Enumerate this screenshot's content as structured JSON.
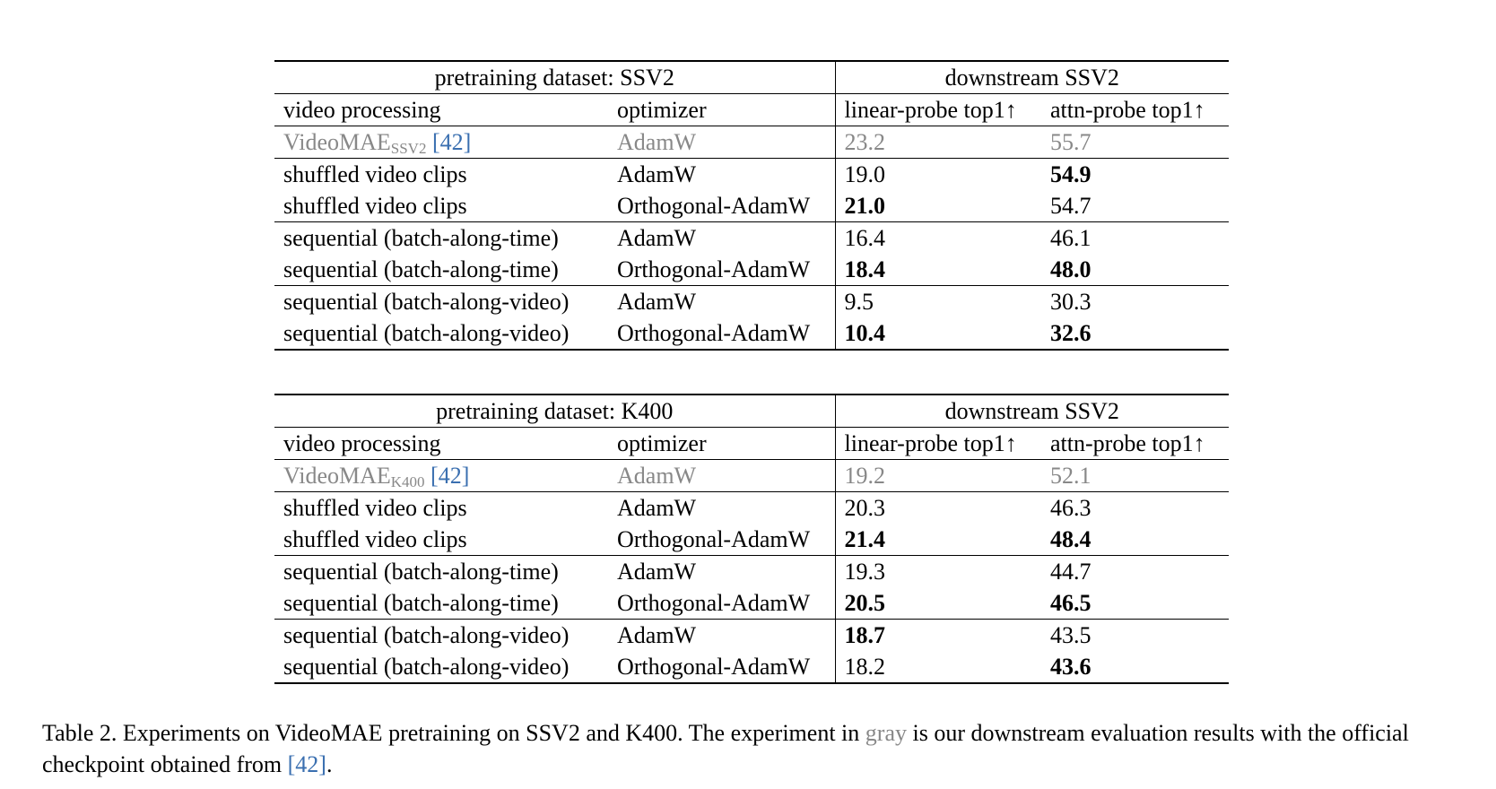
{
  "tables": [
    {
      "pretrain_header": "pretraining dataset: SSV2",
      "downstream_header": "downstream SSV2",
      "columns": [
        "video processing",
        "optimizer",
        "linear-probe top1↑",
        "attn-probe top1↑"
      ],
      "baseline": {
        "method": "VideoMAE",
        "subscript": "SSV2",
        "ref": "[42]",
        "optimizer": "AdamW",
        "linear": "23.2",
        "attn": "55.7"
      },
      "rows": [
        {
          "method": "shuffled video clips",
          "optimizer": "AdamW",
          "linear": "19.0",
          "attn": "54.9"
        },
        {
          "method": "shuffled video clips",
          "optimizer": "Orthogonal-AdamW",
          "linear": "21.0",
          "attn": "54.7"
        },
        {
          "method": "sequential (batch-along-time)",
          "optimizer": "AdamW",
          "linear": "16.4",
          "attn": "46.1"
        },
        {
          "method": "sequential (batch-along-time)",
          "optimizer": "Orthogonal-AdamW",
          "linear": "18.4",
          "attn": "48.0"
        },
        {
          "method": "sequential (batch-along-video)",
          "optimizer": "AdamW",
          "linear": "9.5",
          "attn": "30.3"
        },
        {
          "method": "sequential (batch-along-video)",
          "optimizer": "Orthogonal-AdamW",
          "linear": "10.4",
          "attn": "32.6"
        }
      ]
    },
    {
      "pretrain_header": "pretraining dataset: K400",
      "downstream_header": "downstream SSV2",
      "columns": [
        "video processing",
        "optimizer",
        "linear-probe top1↑",
        "attn-probe top1↑"
      ],
      "baseline": {
        "method": "VideoMAE",
        "subscript": "K400",
        "ref": "[42]",
        "optimizer": "AdamW",
        "linear": "19.2",
        "attn": "52.1"
      },
      "rows": [
        {
          "method": "shuffled video clips",
          "optimizer": "AdamW",
          "linear": "20.3",
          "attn": "46.3"
        },
        {
          "method": "shuffled video clips",
          "optimizer": "Orthogonal-AdamW",
          "linear": "21.4",
          "attn": "48.4"
        },
        {
          "method": "sequential (batch-along-time)",
          "optimizer": "AdamW",
          "linear": "19.3",
          "attn": "44.7"
        },
        {
          "method": "sequential (batch-along-time)",
          "optimizer": "Orthogonal-AdamW",
          "linear": "20.5",
          "attn": "46.5"
        },
        {
          "method": "sequential (batch-along-video)",
          "optimizer": "AdamW",
          "linear": "18.7",
          "attn": "43.5"
        },
        {
          "method": "sequential (batch-along-video)",
          "optimizer": "Orthogonal-AdamW",
          "linear": "18.2",
          "attn": "43.6"
        }
      ]
    }
  ],
  "caption": {
    "part1": "Table 2. Experiments on VideoMAE pretraining on SSV2 and K400. The experiment in ",
    "gray_word": "gray",
    "part2": " is our downstream evaluation results with the official checkpoint obtained from ",
    "ref": "[42]",
    "part3": "."
  }
}
